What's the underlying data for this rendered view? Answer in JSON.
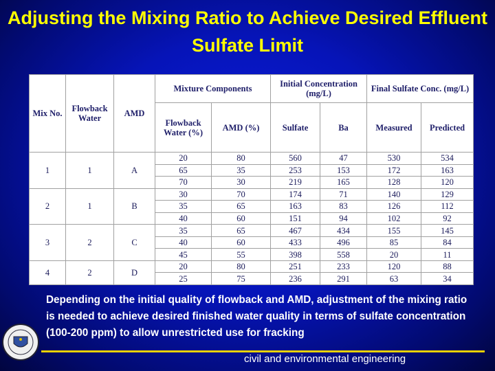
{
  "title": "Adjusting the Mixing Ratio to Achieve Desired Effluent Sulfate Limit",
  "table": {
    "header": {
      "mix_no": "Mix No.",
      "flowback": "Flowback Water",
      "amd": "AMD",
      "mixture_components": "Mixture Components",
      "initial_concentration": "Initial Concentration (mg/L)",
      "final_sulfate": "Final Sulfate Conc. (mg/L)",
      "subheaders": [
        "Flowback Water (%)",
        "AMD (%)",
        "Sulfate",
        "Ba",
        "Measured",
        "Predicted"
      ]
    },
    "groups": [
      {
        "mix": "1",
        "flowback": "1",
        "amd": "A",
        "rows": [
          [
            20,
            80,
            560,
            47,
            530,
            534
          ],
          [
            65,
            35,
            253,
            153,
            172,
            163
          ],
          [
            70,
            30,
            219,
            165,
            128,
            120
          ]
        ]
      },
      {
        "mix": "2",
        "flowback": "1",
        "amd": "B",
        "rows": [
          [
            30,
            70,
            174,
            71,
            140,
            129
          ],
          [
            35,
            65,
            163,
            83,
            126,
            112
          ],
          [
            40,
            60,
            151,
            94,
            102,
            92
          ]
        ]
      },
      {
        "mix": "3",
        "flowback": "2",
        "amd": "C",
        "rows": [
          [
            35,
            65,
            467,
            434,
            155,
            145
          ],
          [
            40,
            60,
            433,
            496,
            85,
            84
          ],
          [
            45,
            55,
            398,
            558,
            20,
            11
          ]
        ]
      },
      {
        "mix": "4",
        "flowback": "2",
        "amd": "D",
        "rows": [
          [
            20,
            80,
            251,
            233,
            120,
            88
          ],
          [
            25,
            75,
            236,
            291,
            63,
            34
          ]
        ]
      }
    ]
  },
  "body": "Depending on the initial quality of flowback and AMD, adjustment of the mixing ratio is needed to achieve desired finished water quality in terms of sulfate concentration (100-200 ppm) to allow unrestricted use for fracking",
  "footer": "civil and environmental engineering"
}
